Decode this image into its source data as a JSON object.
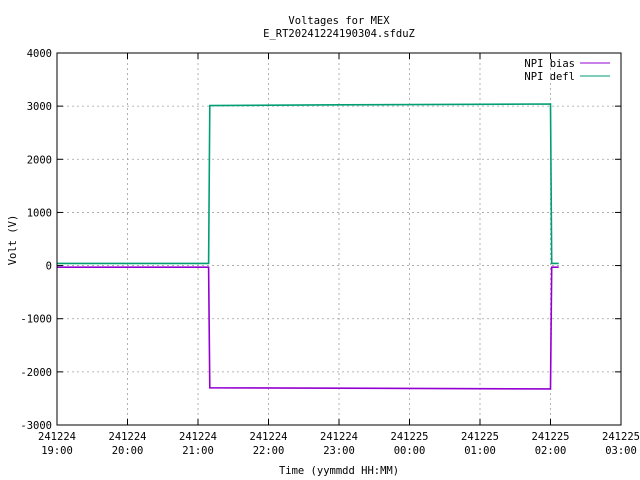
{
  "chart_data": {
    "type": "line",
    "title": "Voltages for MEX",
    "subtitle": "E_RT20241224190304.sfduZ",
    "xlabel": "Time (yymmdd HH:MM)",
    "ylabel": "Volt (V)",
    "xlim": [
      "2024-12-24 19:00",
      "2024-12-25 03:00"
    ],
    "ylim": [
      -3000,
      4000
    ],
    "grid": true,
    "legend_position": "top-right",
    "x_ticks": [
      {
        "date": "241224",
        "time": "19:00"
      },
      {
        "date": "241224",
        "time": "20:00"
      },
      {
        "date": "241224",
        "time": "21:00"
      },
      {
        "date": "241224",
        "time": "22:00"
      },
      {
        "date": "241224",
        "time": "23:00"
      },
      {
        "date": "241225",
        "time": "00:00"
      },
      {
        "date": "241225",
        "time": "01:00"
      },
      {
        "date": "241225",
        "time": "02:00"
      },
      {
        "date": "241225",
        "time": "03:00"
      }
    ],
    "y_ticks": [
      "4000",
      "3000",
      "2000",
      "1000",
      "0",
      "-1000",
      "-2000",
      "-3000"
    ],
    "series": [
      {
        "name": "NPI bias",
        "color": "#9400d3",
        "points": [
          {
            "t": "2024-12-24 19:00",
            "v": -30
          },
          {
            "t": "2024-12-24 21:09",
            "v": -30
          },
          {
            "t": "2024-12-24 21:10",
            "v": -2300
          },
          {
            "t": "2024-12-25 02:00",
            "v": -2320
          },
          {
            "t": "2024-12-25 02:01",
            "v": -30
          },
          {
            "t": "2024-12-25 02:07",
            "v": -30
          }
        ]
      },
      {
        "name": "NPI defl",
        "color": "#009e73",
        "points": [
          {
            "t": "2024-12-24 19:00",
            "v": 40
          },
          {
            "t": "2024-12-24 21:09",
            "v": 40
          },
          {
            "t": "2024-12-24 21:10",
            "v": 3010
          },
          {
            "t": "2024-12-24 23:00",
            "v": 3025
          },
          {
            "t": "2024-12-25 01:00",
            "v": 3035
          },
          {
            "t": "2024-12-25 02:00",
            "v": 3040
          },
          {
            "t": "2024-12-25 02:01",
            "v": 40
          },
          {
            "t": "2024-12-25 02:07",
            "v": 40
          }
        ]
      }
    ]
  }
}
